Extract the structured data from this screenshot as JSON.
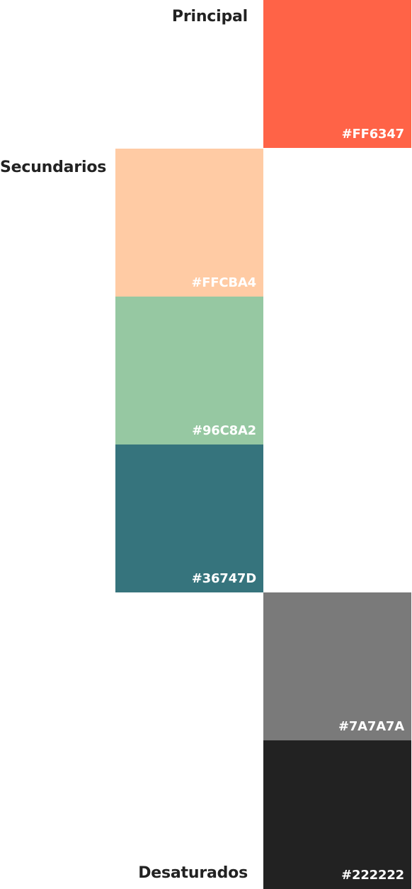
{
  "labels": {
    "principal": "Principal",
    "secundarios": "Secundarios",
    "desaturados": "Desaturados"
  },
  "swatches": {
    "principal": {
      "hex": "#FF6347",
      "color": "#FF6347"
    },
    "secundario_1": {
      "hex": "#FFCBA4",
      "color": "#FFCBA4"
    },
    "secundario_2": {
      "hex": "#96C8A2",
      "color": "#96C8A2"
    },
    "secundario_3": {
      "hex": "#36747D",
      "color": "#36747D"
    },
    "desaturado_1": {
      "hex": "#7A7A7A",
      "color": "#7A7A7A"
    },
    "desaturado_2": {
      "hex": "#222222",
      "color": "#222222"
    }
  }
}
